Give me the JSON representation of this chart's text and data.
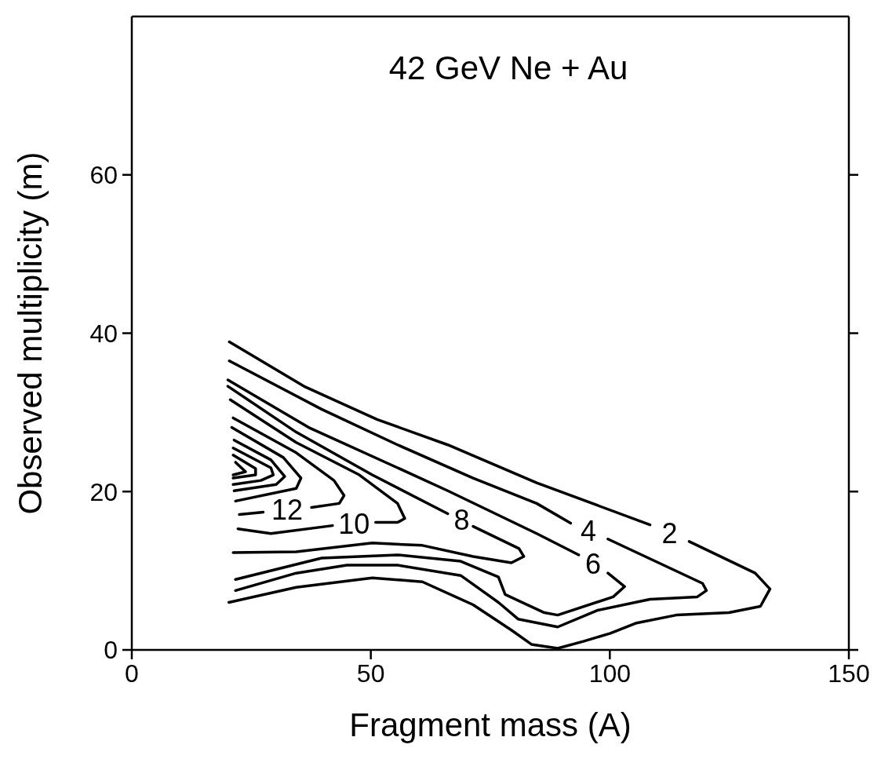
{
  "chart_data": {
    "type": "line",
    "title": "42 GeV Ne + Au",
    "xlabel": "Fragment mass (A)",
    "ylabel": "Observed multiplicity (m)",
    "xlim": [
      0,
      150
    ],
    "ylim": [
      0,
      80
    ],
    "xticks": [
      0,
      50,
      100,
      150
    ],
    "yticks": [
      0,
      20,
      40,
      60
    ],
    "grid": false,
    "legend": false,
    "marker": "none",
    "line_style": "solid",
    "series": [
      {
        "name": "2",
        "color": "#000000",
        "x": [
          20.4,
          36,
          51.3,
          66.1,
          84.7,
          108.4,
          112.5,
          116.6,
          130.4,
          133.5,
          131.5,
          124.9,
          113.9,
          105.6,
          100.1,
          94.6,
          89.1,
          83.6,
          79.4,
          71.4,
          60.8,
          50.3,
          34.4,
          20.3
        ],
        "values": [
          38.9,
          33.3,
          29.1,
          25.9,
          21.1,
          15.8,
          null,
          13.7,
          9.7,
          7.7,
          5.5,
          4.7,
          4.4,
          3.4,
          2.1,
          1.1,
          0.2,
          0.7,
          2.5,
          5.7,
          8.6,
          9.1,
          7.9,
          6.0
        ]
      },
      {
        "name": "4",
        "color": "#000000",
        "x": [
          20.4,
          39.7,
          55.6,
          71.4,
          84.7,
          91.8,
          95.5,
          99.6,
          119.4,
          120.2,
          118.3,
          108.4,
          97.4,
          89.1,
          80.8,
          76.7,
          68.8,
          55.6,
          45,
          34.4,
          21.7
        ],
        "values": [
          36.5,
          30.4,
          25.9,
          21.7,
          18.5,
          16.0,
          null,
          14.0,
          8.4,
          7.5,
          6.7,
          6.4,
          5.0,
          2.9,
          3.9,
          6.0,
          9.4,
          10.7,
          10.7,
          9.7,
          7.5
        ]
      },
      {
        "name": "6",
        "color": "#000000",
        "x": [
          20.1,
          37,
          55.6,
          66.1,
          84.7,
          93.5,
          96.5,
          99.6,
          103.1,
          100.7,
          89.1,
          86.3,
          78.1,
          76.7,
          68.8,
          55.6,
          39.7,
          21.7
        ],
        "values": [
          34.1,
          28.1,
          23.0,
          20.1,
          14.7,
          12.0,
          null,
          9.7,
          8.0,
          6.7,
          4.4,
          4.7,
          7.0,
          9.2,
          11.2,
          12.0,
          11.6,
          8.9
        ]
      },
      {
        "name": "8",
        "color": "#000000",
        "x": [
          20.1,
          34.4,
          50.3,
          66.1,
          69,
          71.4,
          81,
          82,
          79.4,
          71.4,
          60.8,
          50.3,
          34.4,
          21.2
        ],
        "values": [
          33.3,
          27.5,
          22.1,
          17.2,
          null,
          15.6,
          12.8,
          11.8,
          11.0,
          11.8,
          13.2,
          13.5,
          12.4,
          12.3
        ]
      },
      {
        "name": "10",
        "color": "#000000",
        "x": [
          20.6,
          34.4,
          47.6,
          55.6,
          57.1,
          55.6,
          51,
          46.5,
          42,
          29.1,
          22.2
        ],
        "values": [
          31.6,
          26.2,
          22.1,
          18.5,
          16.6,
          16.1,
          16.1,
          null,
          15.7,
          14.7,
          15.3
        ]
      },
      {
        "name": "12",
        "color": "#000000",
        "x": [
          21.2,
          34.4,
          42.3,
          44.4,
          43.4,
          37.6,
          32.5,
          27.5,
          22.5
        ],
        "values": [
          29.3,
          24.9,
          21.4,
          19.5,
          18.5,
          18.0,
          null,
          17.4,
          17.1
        ]
      },
      {
        "color": "#000000",
        "x": [
          20.9,
          31.7,
          35.4,
          34.4,
          21.7
        ],
        "values": [
          28.1,
          24.3,
          21.7,
          20.4,
          18.8
        ]
      },
      {
        "color": "#000000",
        "x": [
          21.4,
          29.1,
          32,
          30.2,
          21.4
        ],
        "values": [
          26.5,
          24.0,
          21.9,
          20.9,
          20.1
        ]
      },
      {
        "color": "#000000",
        "x": [
          21.2,
          29.1,
          29.6,
          27,
          21.2
        ],
        "values": [
          25.5,
          23.0,
          22.1,
          21.4,
          20.9
        ]
      },
      {
        "color": "#000000",
        "x": [
          21.2,
          25.9,
          25.9,
          21.2
        ],
        "values": [
          24.6,
          22.9,
          22.1,
          21.7
        ]
      },
      {
        "color": "#000000",
        "x": [
          21.7,
          23.8,
          21.2
        ],
        "values": [
          23.7,
          22.5,
          22.1
        ]
      }
    ]
  }
}
